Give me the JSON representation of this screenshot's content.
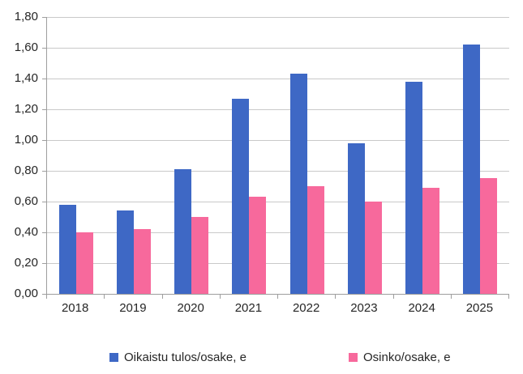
{
  "chart_data": {
    "type": "bar",
    "title": "",
    "xlabel": "",
    "ylabel": "",
    "categories": [
      "2018",
      "2019",
      "2020",
      "2021",
      "2022",
      "2023",
      "2024",
      "2025"
    ],
    "series": [
      {
        "name": "Oikaistu tulos/osake, e",
        "color": "#3e68c5",
        "values": [
          0.58,
          0.54,
          0.81,
          1.27,
          1.43,
          0.98,
          1.38,
          1.62
        ]
      },
      {
        "name": "Osinko/osake, e",
        "color": "#f7699c",
        "values": [
          0.4,
          0.42,
          0.5,
          0.63,
          0.7,
          0.6,
          0.69,
          0.75
        ]
      }
    ],
    "ylim": [
      0,
      1.8
    ],
    "ytick_step": 0.2,
    "ytick_labels": [
      "0,00",
      "0,20",
      "0,40",
      "0,60",
      "0,80",
      "1,00",
      "1,20",
      "1,40",
      "1,60",
      "1,80"
    ],
    "grid": true,
    "legend_position": "bottom"
  },
  "colors": {
    "background": "#ffffff",
    "gridline": "#c9c9c9",
    "axis": "#9e9e9e",
    "text": "#262626"
  }
}
